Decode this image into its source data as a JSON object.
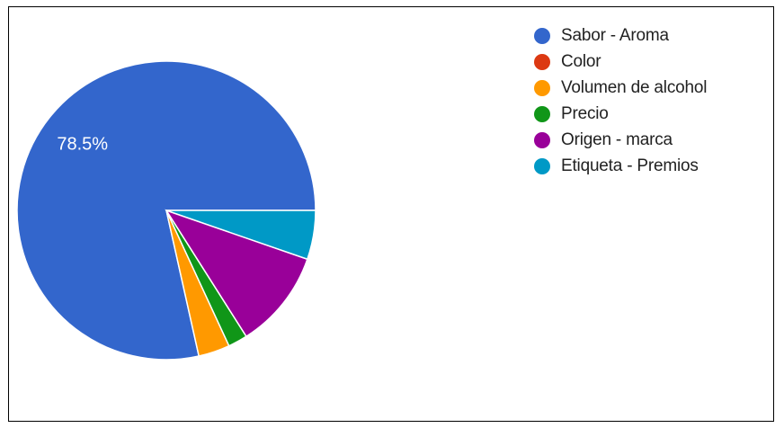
{
  "chart_data": {
    "type": "pie",
    "title": "",
    "series": [
      {
        "label": "Sabor - Aroma",
        "value": 78.5,
        "color": "#3366CC"
      },
      {
        "label": "Color",
        "value": 0,
        "color": "#DC3912"
      },
      {
        "label": "Volumen de alcohol",
        "value": 3.4,
        "color": "#FF9900"
      },
      {
        "label": "Precio",
        "value": 2.1,
        "color": "#109618"
      },
      {
        "label": "Origen - marca",
        "value": 10.7,
        "color": "#990099"
      },
      {
        "label": "Etiqueta - Premios",
        "value": 5.3,
        "color": "#0099C6"
      }
    ],
    "slice_labels": [
      "78.5%"
    ],
    "start_angle_deg": 0,
    "direction": "clockwise",
    "legend_position": "right"
  }
}
